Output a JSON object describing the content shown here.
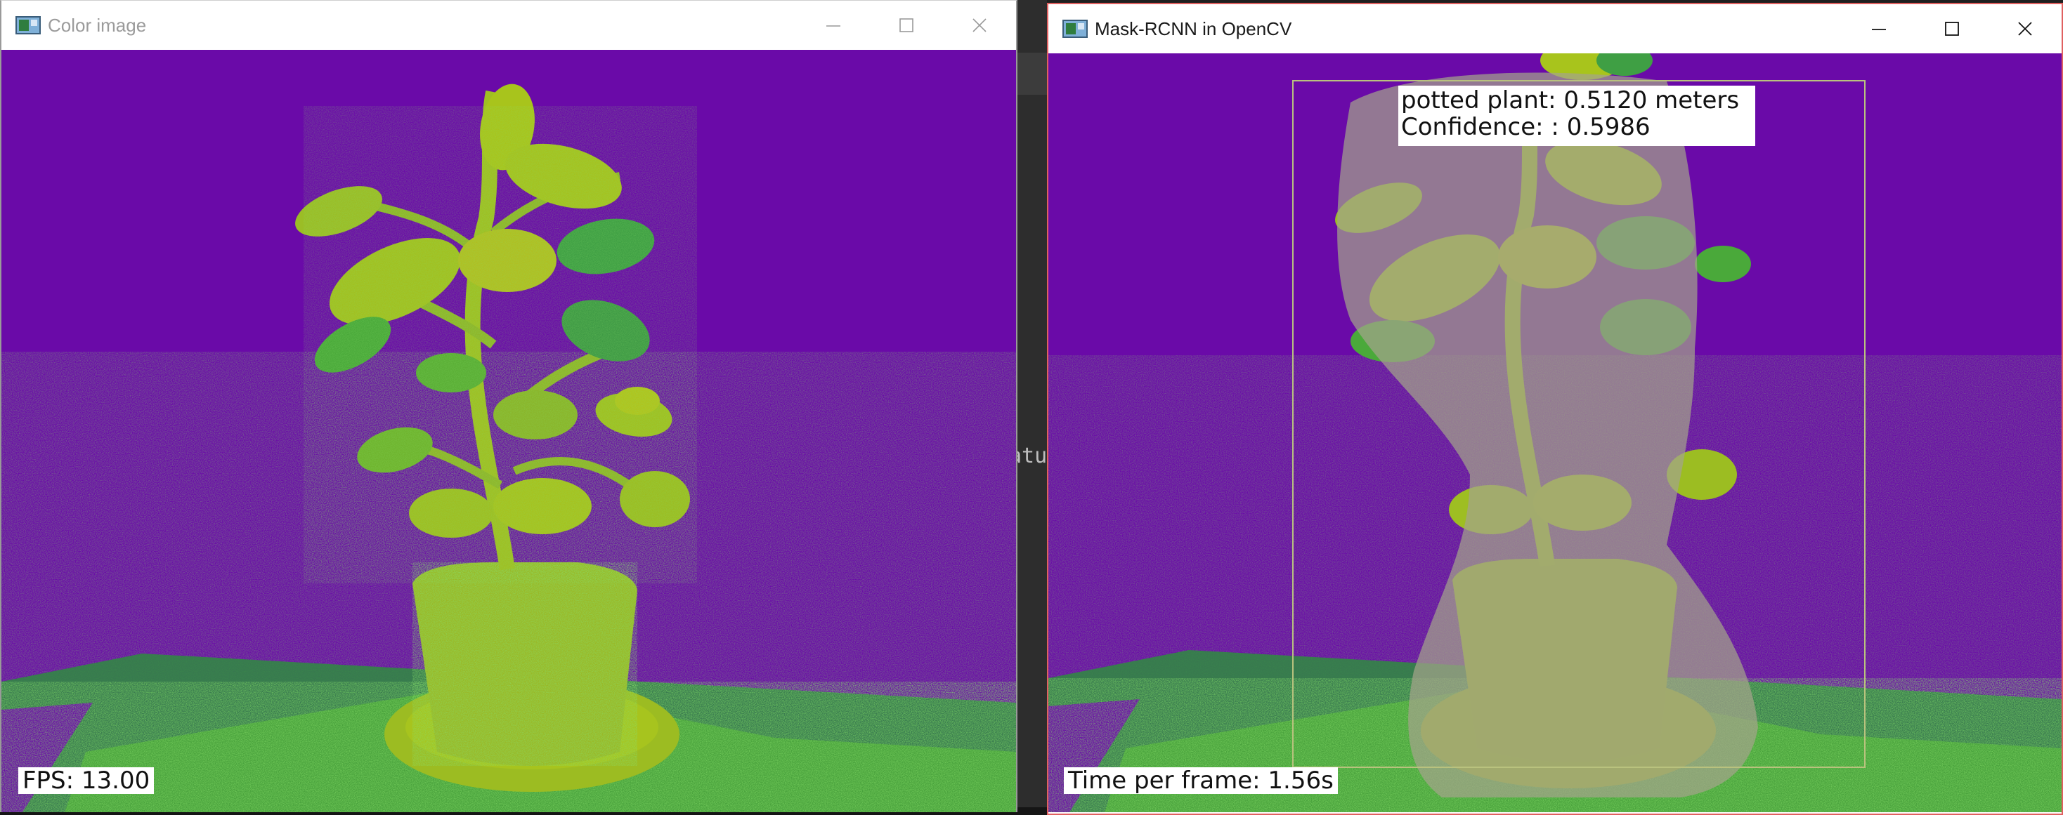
{
  "console": {
    "fragment": "atu"
  },
  "left_window": {
    "title": "Color image",
    "controls": [
      "minimize-icon",
      "maximize-icon",
      "close-icon"
    ],
    "overlay": {
      "fps_label": "FPS: 13.00"
    }
  },
  "right_window": {
    "title": "Mask-RCNN in OpenCV",
    "controls": [
      "minimize-icon",
      "maximize-icon",
      "close-icon"
    ],
    "detection": {
      "label_line": "potted plant: 0.5120 meters",
      "confidence_line": "Confidence: : 0.5986"
    },
    "overlay": {
      "time_label": "Time per frame: 1.56s"
    }
  },
  "colors": {
    "background_purple": "#6a0aa8",
    "plant_yellow_green": "#a7c41e",
    "plant_green": "#3fa82e",
    "mask_gray": "#9a9e7a",
    "bbox_line": "#b9c27e",
    "focus_border": "#e06060"
  }
}
